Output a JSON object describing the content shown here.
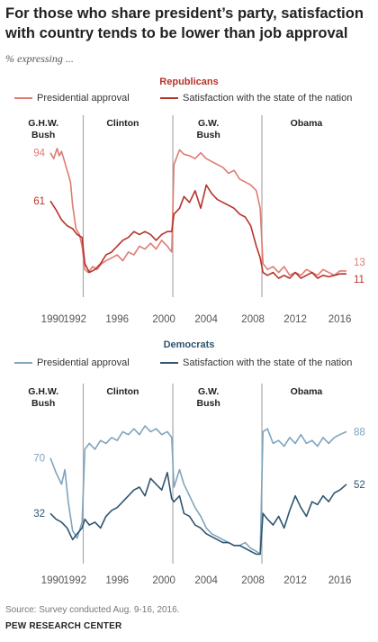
{
  "title": "For those who share president’s party, satisfaction with country tends to be lower than job approval",
  "subtitle": "% expressing ...",
  "source": "Source: Survey conducted Aug. 9-16, 2016.",
  "org": "PEW RESEARCH CENTER",
  "chart_data": [
    {
      "type": "line",
      "title": "Republicans",
      "eras": [
        "G.H.W.\nBush",
        "Clinton",
        "G.W.\nBush",
        "Obama"
      ],
      "xticks": [
        "1990",
        "1992",
        "1996",
        "2000",
        "2004",
        "2008",
        "2012",
        "2016"
      ],
      "ylim": [
        0,
        100
      ],
      "series": [
        {
          "name": "Presidential approval",
          "color": "#e07b73",
          "end_label": "13",
          "start_label": "94",
          "points": [
            [
              1990.0,
              94
            ],
            [
              1990.3,
              90
            ],
            [
              1990.6,
              97
            ],
            [
              1990.8,
              92
            ],
            [
              1991.0,
              95
            ],
            [
              1991.2,
              90
            ],
            [
              1991.5,
              82
            ],
            [
              1991.8,
              74
            ],
            [
              1992.0,
              58
            ],
            [
              1992.3,
              42
            ],
            [
              1992.6,
              38
            ],
            [
              1992.85,
              30
            ],
            [
              1993.1,
              14
            ],
            [
              1993.4,
              12
            ],
            [
              1993.8,
              16
            ],
            [
              1994.2,
              14
            ],
            [
              1994.6,
              18
            ],
            [
              1995.0,
              20
            ],
            [
              1995.5,
              22
            ],
            [
              1996.0,
              24
            ],
            [
              1996.5,
              20
            ],
            [
              1997.0,
              26
            ],
            [
              1997.5,
              24
            ],
            [
              1998.0,
              30
            ],
            [
              1998.5,
              28
            ],
            [
              1999.0,
              32
            ],
            [
              1999.5,
              28
            ],
            [
              2000.0,
              34
            ],
            [
              2000.5,
              30
            ],
            [
              2000.9,
              26
            ],
            [
              2001.1,
              86
            ],
            [
              2001.6,
              96
            ],
            [
              2002.0,
              93
            ],
            [
              2002.5,
              92
            ],
            [
              2003.0,
              90
            ],
            [
              2003.5,
              94
            ],
            [
              2004.0,
              90
            ],
            [
              2004.5,
              88
            ],
            [
              2005.0,
              86
            ],
            [
              2005.5,
              84
            ],
            [
              2006.0,
              80
            ],
            [
              2006.5,
              82
            ],
            [
              2007.0,
              76
            ],
            [
              2007.5,
              74
            ],
            [
              2008.0,
              72
            ],
            [
              2008.5,
              68
            ],
            [
              2008.85,
              56
            ],
            [
              2009.1,
              18
            ],
            [
              2009.5,
              14
            ],
            [
              2010.0,
              16
            ],
            [
              2010.5,
              12
            ],
            [
              2011.0,
              16
            ],
            [
              2011.5,
              10
            ],
            [
              2012.0,
              12
            ],
            [
              2012.5,
              10
            ],
            [
              2013.0,
              14
            ],
            [
              2013.5,
              12
            ],
            [
              2014.0,
              10
            ],
            [
              2014.5,
              14
            ],
            [
              2015.0,
              12
            ],
            [
              2015.5,
              10
            ],
            [
              2016.0,
              13
            ],
            [
              2016.6,
              13
            ]
          ]
        },
        {
          "name": "Satisfaction with the state of the nation",
          "color": "#b5332a",
          "end_label": "11",
          "start_label": "61",
          "points": [
            [
              1990.0,
              61
            ],
            [
              1990.5,
              55
            ],
            [
              1991.0,
              48
            ],
            [
              1991.5,
              44
            ],
            [
              1992.0,
              42
            ],
            [
              1992.4,
              38
            ],
            [
              1992.85,
              36
            ],
            [
              1993.1,
              18
            ],
            [
              1993.5,
              12
            ],
            [
              1994.0,
              14
            ],
            [
              1994.5,
              18
            ],
            [
              1995.0,
              24
            ],
            [
              1995.5,
              26
            ],
            [
              1996.0,
              30
            ],
            [
              1996.5,
              34
            ],
            [
              1997.0,
              36
            ],
            [
              1997.5,
              40
            ],
            [
              1998.0,
              38
            ],
            [
              1998.5,
              40
            ],
            [
              1999.0,
              38
            ],
            [
              1999.5,
              34
            ],
            [
              2000.0,
              38
            ],
            [
              2000.5,
              40
            ],
            [
              2000.9,
              40
            ],
            [
              2001.1,
              52
            ],
            [
              2001.6,
              56
            ],
            [
              2002.0,
              64
            ],
            [
              2002.5,
              60
            ],
            [
              2003.0,
              68
            ],
            [
              2003.5,
              56
            ],
            [
              2004.0,
              72
            ],
            [
              2004.5,
              66
            ],
            [
              2005.0,
              62
            ],
            [
              2005.5,
              60
            ],
            [
              2006.0,
              58
            ],
            [
              2006.5,
              56
            ],
            [
              2007.0,
              52
            ],
            [
              2007.5,
              50
            ],
            [
              2008.0,
              44
            ],
            [
              2008.5,
              30
            ],
            [
              2008.85,
              22
            ],
            [
              2009.1,
              12
            ],
            [
              2009.5,
              10
            ],
            [
              2010.0,
              12
            ],
            [
              2010.5,
              8
            ],
            [
              2011.0,
              10
            ],
            [
              2011.5,
              8
            ],
            [
              2012.0,
              12
            ],
            [
              2012.5,
              8
            ],
            [
              2013.0,
              10
            ],
            [
              2013.5,
              12
            ],
            [
              2014.0,
              8
            ],
            [
              2014.5,
              10
            ],
            [
              2015.0,
              9
            ],
            [
              2015.5,
              10
            ],
            [
              2016.0,
              11
            ],
            [
              2016.6,
              11
            ]
          ]
        }
      ]
    },
    {
      "type": "line",
      "title": "Democrats",
      "eras": [
        "G.H.W.\nBush",
        "Clinton",
        "G.W.\nBush",
        "Obama"
      ],
      "xticks": [
        "1990",
        "1992",
        "1996",
        "2000",
        "2004",
        "2008",
        "2012",
        "2016"
      ],
      "ylim": [
        0,
        100
      ],
      "series": [
        {
          "name": "Presidential approval",
          "color": "#7fa4bd",
          "end_label": "88",
          "start_label": "70",
          "points": [
            [
              1990.0,
              70
            ],
            [
              1990.5,
              60
            ],
            [
              1991.0,
              52
            ],
            [
              1991.3,
              62
            ],
            [
              1991.6,
              40
            ],
            [
              1992.0,
              20
            ],
            [
              1992.4,
              15
            ],
            [
              1992.85,
              26
            ],
            [
              1993.1,
              76
            ],
            [
              1993.5,
              80
            ],
            [
              1994.0,
              76
            ],
            [
              1994.5,
              82
            ],
            [
              1995.0,
              80
            ],
            [
              1995.5,
              84
            ],
            [
              1996.0,
              82
            ],
            [
              1996.5,
              88
            ],
            [
              1997.0,
              86
            ],
            [
              1997.5,
              90
            ],
            [
              1998.0,
              86
            ],
            [
              1998.5,
              92
            ],
            [
              1999.0,
              88
            ],
            [
              1999.5,
              90
            ],
            [
              2000.0,
              86
            ],
            [
              2000.5,
              88
            ],
            [
              2000.9,
              84
            ],
            [
              2001.1,
              50
            ],
            [
              2001.6,
              62
            ],
            [
              2002.0,
              52
            ],
            [
              2002.5,
              44
            ],
            [
              2003.0,
              36
            ],
            [
              2003.5,
              30
            ],
            [
              2004.0,
              22
            ],
            [
              2004.5,
              18
            ],
            [
              2005.0,
              16
            ],
            [
              2005.5,
              14
            ],
            [
              2006.0,
              12
            ],
            [
              2006.5,
              10
            ],
            [
              2007.0,
              10
            ],
            [
              2007.5,
              12
            ],
            [
              2008.0,
              8
            ],
            [
              2008.5,
              6
            ],
            [
              2008.85,
              4
            ],
            [
              2009.1,
              88
            ],
            [
              2009.5,
              90
            ],
            [
              2010.0,
              80
            ],
            [
              2010.5,
              82
            ],
            [
              2011.0,
              78
            ],
            [
              2011.5,
              84
            ],
            [
              2012.0,
              80
            ],
            [
              2012.5,
              86
            ],
            [
              2013.0,
              80
            ],
            [
              2013.5,
              82
            ],
            [
              2014.0,
              78
            ],
            [
              2014.5,
              84
            ],
            [
              2015.0,
              80
            ],
            [
              2015.5,
              84
            ],
            [
              2016.0,
              86
            ],
            [
              2016.6,
              88
            ]
          ]
        },
        {
          "name": "Satisfaction with the state of the nation",
          "color": "#2f5571",
          "end_label": "52",
          "start_label": "32",
          "points": [
            [
              1990.0,
              32
            ],
            [
              1990.5,
              28
            ],
            [
              1991.0,
              26
            ],
            [
              1991.5,
              22
            ],
            [
              1992.0,
              14
            ],
            [
              1992.4,
              18
            ],
            [
              1992.85,
              22
            ],
            [
              1993.1,
              28
            ],
            [
              1993.5,
              24
            ],
            [
              1994.0,
              26
            ],
            [
              1994.5,
              22
            ],
            [
              1995.0,
              30
            ],
            [
              1995.5,
              34
            ],
            [
              1996.0,
              36
            ],
            [
              1996.5,
              40
            ],
            [
              1997.0,
              44
            ],
            [
              1997.5,
              48
            ],
            [
              1998.0,
              50
            ],
            [
              1998.5,
              44
            ],
            [
              1999.0,
              56
            ],
            [
              1999.5,
              52
            ],
            [
              2000.0,
              48
            ],
            [
              2000.5,
              60
            ],
            [
              2000.9,
              42
            ],
            [
              2001.1,
              40
            ],
            [
              2001.6,
              44
            ],
            [
              2002.0,
              32
            ],
            [
              2002.5,
              30
            ],
            [
              2003.0,
              24
            ],
            [
              2003.5,
              22
            ],
            [
              2004.0,
              18
            ],
            [
              2004.5,
              16
            ],
            [
              2005.0,
              14
            ],
            [
              2005.5,
              12
            ],
            [
              2006.0,
              12
            ],
            [
              2006.5,
              10
            ],
            [
              2007.0,
              10
            ],
            [
              2007.5,
              8
            ],
            [
              2008.0,
              6
            ],
            [
              2008.5,
              4
            ],
            [
              2008.85,
              4
            ],
            [
              2009.1,
              32
            ],
            [
              2009.5,
              28
            ],
            [
              2010.0,
              24
            ],
            [
              2010.5,
              30
            ],
            [
              2011.0,
              22
            ],
            [
              2011.5,
              34
            ],
            [
              2012.0,
              44
            ],
            [
              2012.5,
              36
            ],
            [
              2013.0,
              30
            ],
            [
              2013.5,
              40
            ],
            [
              2014.0,
              38
            ],
            [
              2014.5,
              44
            ],
            [
              2015.0,
              40
            ],
            [
              2015.5,
              46
            ],
            [
              2016.0,
              48
            ],
            [
              2016.6,
              52
            ]
          ]
        }
      ]
    }
  ]
}
